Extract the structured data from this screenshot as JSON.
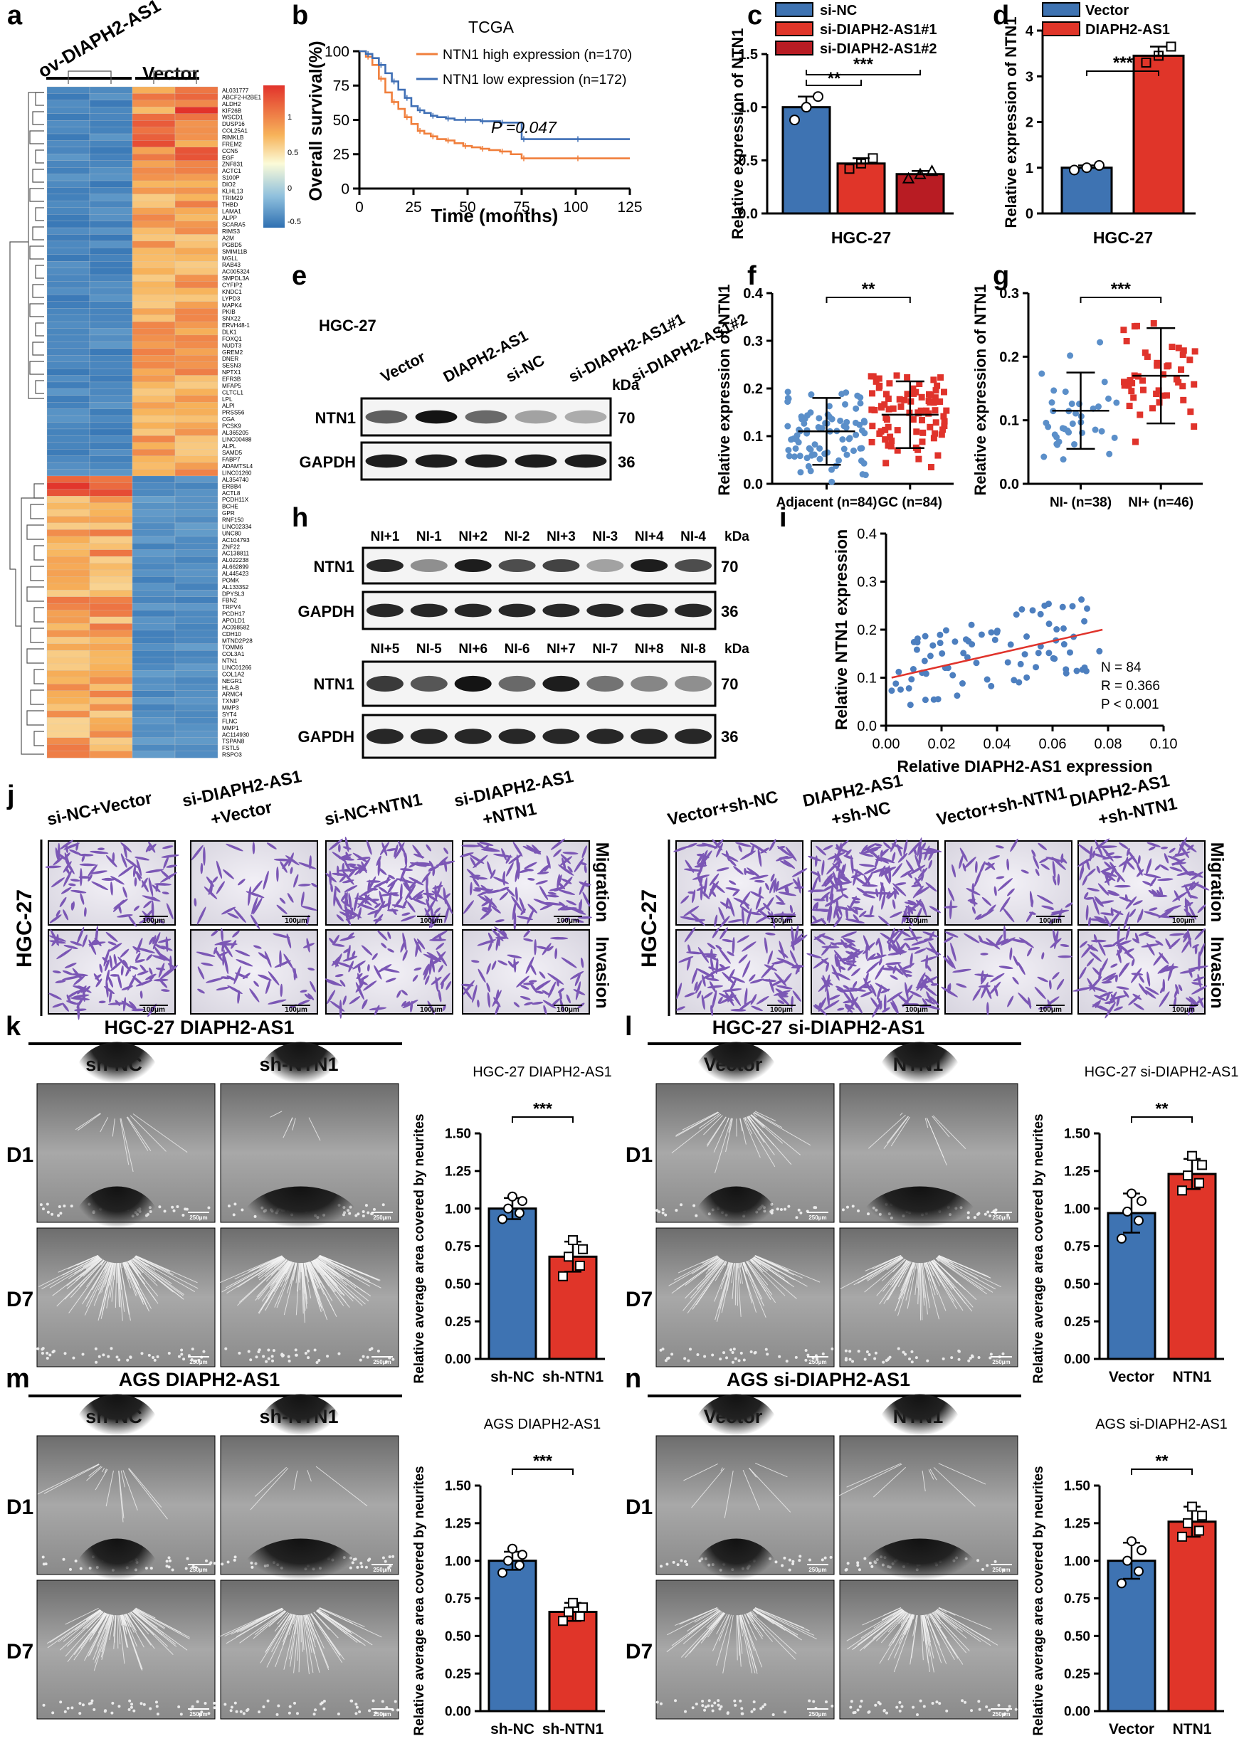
{
  "panels": {
    "a": {
      "letter": "a",
      "col_labels": [
        "ov-DIAPH2-AS1",
        "Vector"
      ],
      "colorbar_ticks": [
        "1",
        "0.5",
        "0",
        "-0.5"
      ],
      "genes": [
        "AL031777",
        "ABCF2-H2BE1",
        "ALDH2",
        "KIF26B",
        "WSCD1",
        "DUSP16",
        "COL25A1",
        "RIMKLB",
        "FREM2",
        "CCN5",
        "EGF",
        "ZNF831",
        "ACTC1",
        "S100P",
        "DIO2",
        "KLHL13",
        "TRIM29",
        "THBD",
        "LAMA1",
        "ALPP",
        "SCARA5",
        "RIMS3",
        "A2M",
        "PGBD5",
        "SMIM11B",
        "MGLL",
        "RAB43",
        "AC005324",
        "SMPDL3A",
        "CYFIP2",
        "KNDC1",
        "LYPD3",
        "MAPK4",
        "PKIB",
        "SNX22",
        "ERVH48-1",
        "DLK1",
        "FOXQ1",
        "NUDT3",
        "GREM2",
        "DNER",
        "SESN3",
        "NPTX1",
        "EFR3B",
        "MFAP5",
        "CLTCL1",
        "LPL",
        "ALPI",
        "PRSS56",
        "CGA",
        "PCSK9",
        "AL365205",
        "LINC00488",
        "ALPL",
        "SAMD5",
        "FABP7",
        "ADAMTSL4",
        "LINC01260",
        "AL354740",
        "ERBB4",
        "ACTL8",
        "PCDH11X",
        "BCHE",
        "GPR",
        "RNF150",
        "LINC02334",
        "UNC80",
        "AC104793",
        "ZNF22",
        "AC138811",
        "AL022238",
        "AL662899",
        "AL445423",
        "POMK",
        "AL133352",
        "DPYSL3",
        "FBN2",
        "TRPV4",
        "PCDH17",
        "APOLD1",
        "AC098582",
        "CDH10",
        "MTND2P28",
        "TOMM6",
        "COL3A1",
        "NTN1",
        "LINC01266",
        "COL1A2",
        "NEGR1",
        "HLA-B",
        "ARMC4",
        "TXNIP",
        "MMP3",
        "SYT4",
        "FLNC",
        "MMP1",
        "AC114930",
        "TSPAN8",
        "FSTL5",
        "RSPO3"
      ]
    },
    "b": {
      "letter": "b",
      "chart_data": {
        "type": "line",
        "title": "TCGA",
        "xlabel": "Time (months)",
        "ylabel": "Overall survival(%)",
        "xlim": [
          0,
          125
        ],
        "ylim": [
          0,
          100
        ],
        "xticks": [
          "0",
          "25",
          "50",
          "75",
          "100",
          "125"
        ],
        "yticks": [
          "0",
          "25",
          "50",
          "75",
          "100"
        ],
        "annotation": "P =0.047",
        "series": [
          {
            "name": "NTN1 high expression (n=170)",
            "color": "#f07f3c",
            "x": [
              0,
              3,
              6,
              9,
              12,
              15,
              18,
              21,
              24,
              27,
              30,
              33,
              36,
              40,
              44,
              48,
              52,
              56,
              60,
              65,
              70,
              75,
              80,
              100,
              120,
              125
            ],
            "y": [
              100,
              96,
              90,
              80,
              70,
              63,
              58,
              52,
              47,
              42,
              40,
              38,
              36,
              35,
              33,
              31,
              30,
              29,
              28,
              27,
              25,
              22,
              22,
              22,
              22,
              22
            ]
          },
          {
            "name": "NTN1 low expression   (n=172)",
            "color": "#3f6fb5",
            "x": [
              0,
              3,
              6,
              9,
              12,
              15,
              18,
              21,
              24,
              27,
              30,
              33,
              36,
              40,
              44,
              48,
              52,
              56,
              60,
              65,
              70,
              75,
              80,
              100,
              120,
              125
            ],
            "y": [
              100,
              98,
              95,
              90,
              84,
              78,
              72,
              66,
              60,
              57,
              55,
              53,
              52,
              51,
              50,
              50,
              50,
              49,
              49,
              48,
              48,
              36,
              36,
              36,
              36,
              36
            ]
          }
        ]
      }
    },
    "c": {
      "letter": "c",
      "chart_data": {
        "type": "bar",
        "xlabel": "HGC-27",
        "ylabel": "Relative expression of NTN1",
        "ylim": [
          0,
          1.5
        ],
        "yticks": [
          "0.0",
          "0.5",
          "1.0",
          "1.5"
        ],
        "series": [
          {
            "name": "si-NC",
            "value": 1.0,
            "color": "#3e73b2",
            "points": [
              0.88,
              1.0,
              1.1
            ]
          },
          {
            "name": "si-DIAPH2-AS1#1",
            "value": 0.47,
            "color": "#e03529",
            "points": [
              0.42,
              0.47,
              0.52
            ]
          },
          {
            "name": "si-DIAPH2-AS1#2",
            "value": 0.37,
            "color": "#b81c23",
            "points": [
              0.33,
              0.37,
              0.4
            ]
          }
        ],
        "annotations": [
          "**",
          "***"
        ]
      }
    },
    "d": {
      "letter": "d",
      "chart_data": {
        "type": "bar",
        "xlabel": "HGC-27",
        "ylabel": "Relative expression of NTN1",
        "ylim": [
          0,
          4
        ],
        "yticks": [
          "0",
          "1",
          "2",
          "3",
          "4"
        ],
        "series": [
          {
            "name": "Vector",
            "value": 1.0,
            "color": "#3e73b2",
            "points": [
              0.95,
              1.0,
              1.05
            ]
          },
          {
            "name": "DIAPH2-AS1",
            "value": 3.45,
            "color": "#e03529",
            "points": [
              3.3,
              3.45,
              3.65
            ]
          }
        ],
        "annotations": [
          "***"
        ]
      }
    },
    "e": {
      "letter": "e",
      "cell_line": "HGC-27",
      "lanes": [
        "Vector",
        "DIAPH2-AS1",
        "si-NC",
        "si-DIAPH2-AS1#1",
        "si-DIAPH2-AS1#2"
      ],
      "rows": [
        {
          "name": "NTN1",
          "kda": "70"
        },
        {
          "name": "GAPDH",
          "kda": "36"
        }
      ],
      "kda_label": "kDa"
    },
    "f": {
      "letter": "f",
      "chart_data": {
        "type": "scatter",
        "ylabel": "Relative expression of NTN1",
        "ylim": [
          0,
          0.4
        ],
        "yticks": [
          "0.0",
          "0.1",
          "0.2",
          "0.3",
          "0.4"
        ],
        "categories": [
          "Adjacent (n=84)",
          "GC (n=84)"
        ],
        "means": [
          0.11,
          0.145
        ],
        "sd": [
          0.07,
          0.07
        ],
        "colors": [
          "#5b8fc9",
          "#e0332b"
        ],
        "annotations": [
          "**"
        ]
      }
    },
    "g": {
      "letter": "g",
      "chart_data": {
        "type": "scatter",
        "ylabel": "Relative expression of NTN1",
        "ylim": [
          0,
          0.3
        ],
        "yticks": [
          "0.0",
          "0.1",
          "0.2",
          "0.3"
        ],
        "categories": [
          "NI- (n=38)",
          "NI+ (n=46)"
        ],
        "means": [
          0.115,
          0.17
        ],
        "sd": [
          0.06,
          0.075
        ],
        "colors": [
          "#5b8fc9",
          "#e0332b"
        ],
        "annotations": [
          "***"
        ]
      }
    },
    "h": {
      "letter": "h",
      "blot1_lanes": [
        "NI+1",
        "NI-1",
        "NI+2",
        "NI-2",
        "NI+3",
        "NI-3",
        "NI+4",
        "NI-4"
      ],
      "blot2_lanes": [
        "NI+5",
        "NI-5",
        "NI+6",
        "NI-6",
        "NI+7",
        "NI-7",
        "NI+8",
        "NI-8"
      ],
      "rows": [
        {
          "name": "NTN1",
          "kda": "70"
        },
        {
          "name": "GAPDH",
          "kda": "36"
        }
      ],
      "kda_label": "kDa"
    },
    "i": {
      "letter": "i",
      "chart_data": {
        "type": "scatter",
        "xlabel": "Relative DIAPH2-AS1 expression",
        "ylabel": "Relative NTN1 expression",
        "xlim": [
          0,
          0.1
        ],
        "ylim": [
          0,
          0.4
        ],
        "xticks": [
          "0.00",
          "0.02",
          "0.04",
          "0.06",
          "0.08",
          "0.10"
        ],
        "yticks": [
          "0.0",
          "0.1",
          "0.2",
          "0.3",
          "0.4"
        ],
        "fit": {
          "x": [
            0.002,
            0.078
          ],
          "y": [
            0.1,
            0.2
          ]
        },
        "stats": [
          "N = 84",
          "R = 0.366",
          "P < 0.001"
        ]
      }
    },
    "j": {
      "letter": "j",
      "cell_line": "HGC-27",
      "left_groups": [
        "si-NC+Vector",
        "si-DIAPH2-AS1\n+Vector",
        "si-NC+NTN1",
        "si-DIAPH2-AS1\n+NTN1"
      ],
      "right_groups": [
        "Vector+sh-NC",
        "DIAPH2-AS1\n+sh-NC",
        "Vector+sh-NTN1",
        "DIAPH2-AS1\n+sh-NTN1"
      ],
      "row_labels": [
        "Migration",
        "Invasion"
      ],
      "scale": "100μm"
    },
    "k": {
      "letter": "k",
      "title": "HGC-27 DIAPH2-AS1",
      "cols": [
        "sh-NC",
        "sh-NTN1"
      ],
      "rows": [
        "D1",
        "D7"
      ],
      "scale": "250μm",
      "chart_data": {
        "type": "bar",
        "title": "HGC-27 DIAPH2-AS1",
        "ylabel": "Relative average area covered by neurites",
        "ylim": [
          0,
          1.5
        ],
        "yticks": [
          "0.00",
          "0.25",
          "0.50",
          "0.75",
          "1.00",
          "1.25",
          "1.50"
        ],
        "categories": [
          "sh-NC",
          "sh-NTN1"
        ],
        "values": [
          1.0,
          0.68
        ],
        "sd": [
          0.07,
          0.1
        ],
        "points": [
          [
            0.93,
            0.97,
            1.0,
            1.05,
            1.08
          ],
          [
            0.55,
            0.62,
            0.68,
            0.73,
            0.79
          ]
        ],
        "colors": [
          "#3e73b2",
          "#e03529"
        ],
        "annotations": [
          "***"
        ]
      }
    },
    "l": {
      "letter": "l",
      "title": "HGC-27 si-DIAPH2-AS1",
      "cols": [
        "Vector",
        "NTN1"
      ],
      "rows": [
        "D1",
        "D7"
      ],
      "scale": "250μm",
      "chart_data": {
        "type": "bar",
        "title": "HGC-27 si-DIAPH2-AS1",
        "ylabel": "Relative average area covered by neurites",
        "ylim": [
          0,
          1.5
        ],
        "yticks": [
          "0.00",
          "0.25",
          "0.50",
          "0.75",
          "1.00",
          "1.25",
          "1.50"
        ],
        "categories": [
          "Vector",
          "NTN1"
        ],
        "values": [
          0.97,
          1.23
        ],
        "sd": [
          0.13,
          0.1
        ],
        "points": [
          [
            0.8,
            0.92,
            0.98,
            1.05,
            1.1
          ],
          [
            1.12,
            1.17,
            1.22,
            1.29,
            1.35
          ]
        ],
        "colors": [
          "#3e73b2",
          "#e03529"
        ],
        "annotations": [
          "**"
        ]
      }
    },
    "m": {
      "letter": "m",
      "title": "AGS DIAPH2-AS1",
      "cols": [
        "sh-NC",
        "sh-NTN1"
      ],
      "rows": [
        "D1",
        "D7"
      ],
      "scale": "250μm",
      "chart_data": {
        "type": "bar",
        "title": "AGS DIAPH2-AS1",
        "ylabel": "Relative average area covered by neurites",
        "ylim": [
          0,
          1.5
        ],
        "yticks": [
          "0.00",
          "0.25",
          "0.50",
          "0.75",
          "1.00",
          "1.25",
          "1.50"
        ],
        "categories": [
          "sh-NC",
          "sh-NTN1"
        ],
        "values": [
          1.0,
          0.66
        ],
        "sd": [
          0.06,
          0.06
        ],
        "points": [
          [
            0.92,
            0.97,
            1.0,
            1.04,
            1.08
          ],
          [
            0.6,
            0.63,
            0.66,
            0.69,
            0.72
          ]
        ],
        "colors": [
          "#3e73b2",
          "#e03529"
        ],
        "annotations": [
          "***"
        ]
      }
    },
    "n": {
      "letter": "n",
      "title": "AGS si-DIAPH2-AS1",
      "cols": [
        "Vector",
        "NTN1"
      ],
      "rows": [
        "D1",
        "D7"
      ],
      "scale": "250μm",
      "chart_data": {
        "type": "bar",
        "title": "AGS si-DIAPH2-AS1",
        "ylabel": "Relative average area covered by neurites",
        "ylim": [
          0,
          1.5
        ],
        "yticks": [
          "0.00",
          "0.25",
          "0.50",
          "0.75",
          "1.00",
          "1.25",
          "1.50"
        ],
        "categories": [
          "Vector",
          "NTN1"
        ],
        "values": [
          1.0,
          1.26
        ],
        "sd": [
          0.12,
          0.1
        ],
        "points": [
          [
            0.85,
            0.93,
            1.0,
            1.07,
            1.13
          ],
          [
            1.16,
            1.2,
            1.25,
            1.3,
            1.36
          ]
        ],
        "colors": [
          "#3e73b2",
          "#e03529"
        ],
        "annotations": [
          "**"
        ]
      }
    }
  }
}
